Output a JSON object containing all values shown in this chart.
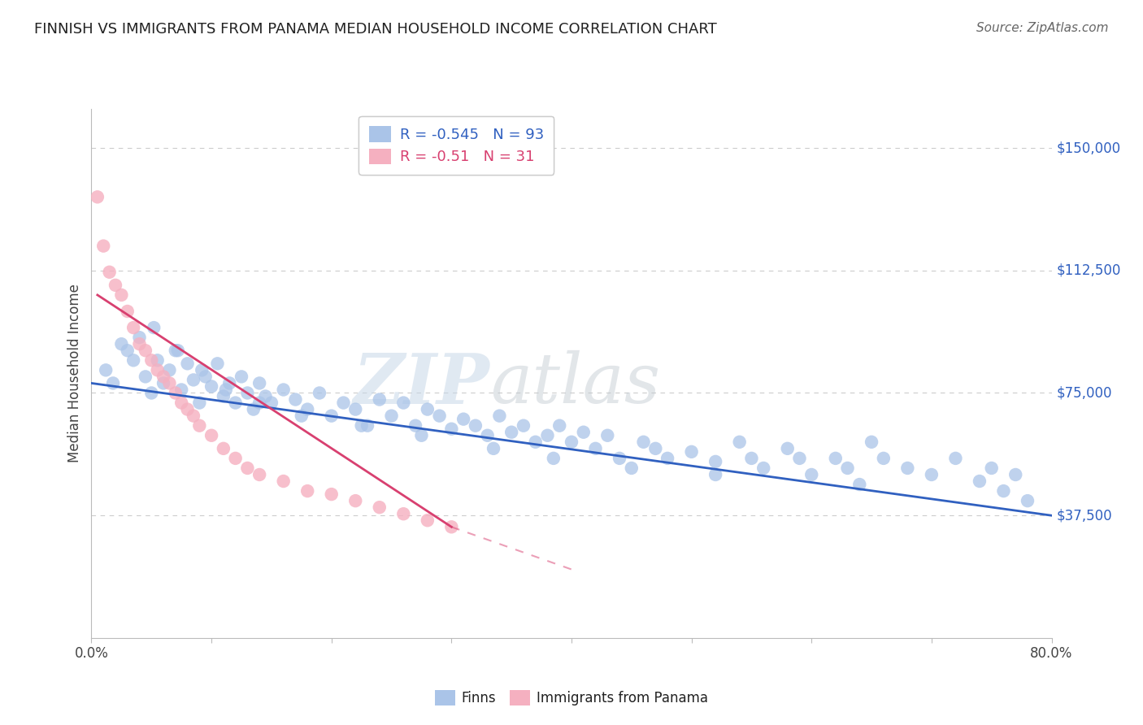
{
  "title": "FINNISH VS IMMIGRANTS FROM PANAMA MEDIAN HOUSEHOLD INCOME CORRELATION CHART",
  "source": "Source: ZipAtlas.com",
  "ylabel": "Median Household Income",
  "yticks": [
    0,
    37500,
    75000,
    112500,
    150000
  ],
  "ytick_labels": [
    "",
    "$37,500",
    "$75,000",
    "$112,500",
    "$150,000"
  ],
  "xlim": [
    0.0,
    80.0
  ],
  "ylim": [
    0,
    162000
  ],
  "r_finns": -0.545,
  "n_finns": 93,
  "r_panama": -0.51,
  "n_panama": 31,
  "legend_label_finns": "Finns",
  "legend_label_panama": "Immigrants from Panama",
  "finns_color": "#aac4e8",
  "panama_color": "#f5b0c0",
  "finns_line_color": "#3060c0",
  "panama_line_color": "#d84070",
  "watermark_zip": "ZIP",
  "watermark_atlas": "atlas",
  "background_color": "#ffffff",
  "grid_color": "#cccccc",
  "title_color": "#222222",
  "source_color": "#666666",
  "finns_scatter_x": [
    1.2,
    1.8,
    2.5,
    3.0,
    3.5,
    4.0,
    4.5,
    5.0,
    5.5,
    6.0,
    6.5,
    7.0,
    7.5,
    8.0,
    8.5,
    9.0,
    9.5,
    10.0,
    10.5,
    11.0,
    11.5,
    12.0,
    12.5,
    13.0,
    13.5,
    14.0,
    14.5,
    15.0,
    16.0,
    17.0,
    18.0,
    19.0,
    20.0,
    21.0,
    22.0,
    23.0,
    24.0,
    25.0,
    26.0,
    27.0,
    28.0,
    29.0,
    30.0,
    31.0,
    32.0,
    33.0,
    34.0,
    35.0,
    36.0,
    37.0,
    38.0,
    39.0,
    40.0,
    41.0,
    42.0,
    43.0,
    44.0,
    46.0,
    47.0,
    48.0,
    50.0,
    52.0,
    54.0,
    55.0,
    56.0,
    58.0,
    59.0,
    60.0,
    62.0,
    63.0,
    65.0,
    66.0,
    68.0,
    70.0,
    72.0,
    74.0,
    75.0,
    76.0,
    77.0,
    78.0,
    5.2,
    7.2,
    9.2,
    11.2,
    14.0,
    17.5,
    22.5,
    27.5,
    33.5,
    38.5,
    45.0,
    52.0,
    64.0
  ],
  "finns_scatter_y": [
    82000,
    78000,
    90000,
    88000,
    85000,
    92000,
    80000,
    75000,
    85000,
    78000,
    82000,
    88000,
    76000,
    84000,
    79000,
    72000,
    80000,
    77000,
    84000,
    74000,
    78000,
    72000,
    80000,
    75000,
    70000,
    78000,
    74000,
    72000,
    76000,
    73000,
    70000,
    75000,
    68000,
    72000,
    70000,
    65000,
    73000,
    68000,
    72000,
    65000,
    70000,
    68000,
    64000,
    67000,
    65000,
    62000,
    68000,
    63000,
    65000,
    60000,
    62000,
    65000,
    60000,
    63000,
    58000,
    62000,
    55000,
    60000,
    58000,
    55000,
    57000,
    54000,
    60000,
    55000,
    52000,
    58000,
    55000,
    50000,
    55000,
    52000,
    60000,
    55000,
    52000,
    50000,
    55000,
    48000,
    52000,
    45000,
    50000,
    42000,
    95000,
    88000,
    82000,
    76000,
    72000,
    68000,
    65000,
    62000,
    58000,
    55000,
    52000,
    50000,
    47000
  ],
  "panama_scatter_x": [
    0.5,
    1.0,
    1.5,
    2.0,
    2.5,
    3.0,
    3.5,
    4.0,
    4.5,
    5.0,
    5.5,
    6.0,
    6.5,
    7.0,
    7.5,
    8.0,
    8.5,
    9.0,
    10.0,
    11.0,
    12.0,
    13.0,
    14.0,
    16.0,
    18.0,
    20.0,
    22.0,
    24.0,
    26.0,
    28.0,
    30.0
  ],
  "panama_scatter_y": [
    135000,
    120000,
    112000,
    108000,
    105000,
    100000,
    95000,
    90000,
    88000,
    85000,
    82000,
    80000,
    78000,
    75000,
    72000,
    70000,
    68000,
    65000,
    62000,
    58000,
    55000,
    52000,
    50000,
    48000,
    45000,
    44000,
    42000,
    40000,
    38000,
    36000,
    34000
  ],
  "finns_line_x0": 0.0,
  "finns_line_x1": 80.0,
  "finns_line_y0": 78000,
  "finns_line_y1": 37500,
  "panama_line_x0": 0.5,
  "panama_line_x1": 30.0,
  "panama_line_y0": 105000,
  "panama_line_y1": 34000,
  "panama_dash_x0": 30.0,
  "panama_dash_x1": 40.0,
  "panama_dash_y0": 34000,
  "panama_dash_y1": 21000
}
